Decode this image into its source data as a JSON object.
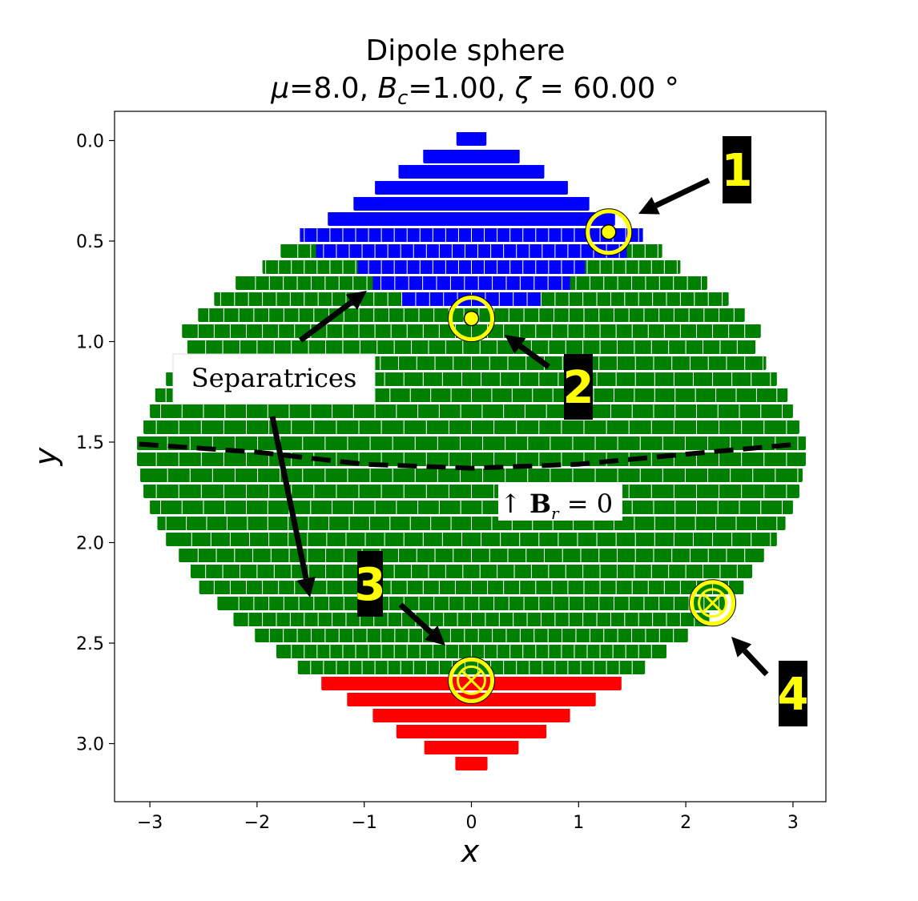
{
  "chart_data": {
    "type": "heatmap",
    "title": "Dipole sphere",
    "subtitle": {
      "mu_symbol": "μ",
      "mu_value": "=8.0, ",
      "bc_symbol": "B",
      "bc_sub": "c",
      "bc_value": "=1.00, ",
      "zeta_symbol": "ζ",
      "zeta_value": " = 60.00 °"
    },
    "xlabel": "x",
    "ylabel": "y",
    "xlim": [
      -3.3,
      3.3
    ],
    "ylim": [
      3.3,
      -0.15
    ],
    "y_inverted": true,
    "x_ticks": [
      "−3",
      "−2",
      "−1",
      "0",
      "1",
      "2",
      "3"
    ],
    "x_tick_values": [
      -3,
      -2,
      -1,
      0,
      1,
      2,
      3
    ],
    "y_ticks": [
      "0.0",
      "0.5",
      "1.0",
      "1.5",
      "2.0",
      "2.5",
      "3.0"
    ],
    "y_tick_values": [
      0,
      0.5,
      1,
      1.5,
      2,
      2.5,
      3
    ],
    "grid": false,
    "colors": {
      "region_top": "#0000ff",
      "region_middle": "#008000",
      "region_bottom": "#ff0000",
      "marker": "#ffff00"
    },
    "separatrix_curve": {
      "x": [
        -3.1,
        -2,
        -1,
        0,
        1,
        2,
        3.05
      ],
      "y": [
        1.51,
        1.55,
        1.61,
        1.63,
        1.61,
        1.56,
        1.51
      ]
    },
    "annotations": {
      "separatrices_label": "Separatrices",
      "br_zero_arrow": "↑ ",
      "br_zero_B": "B",
      "br_zero_sub": "r",
      "br_zero_eq": " = 0"
    },
    "markers": [
      {
        "label": "1",
        "kind": "dot",
        "x": 1.28,
        "y": 0.455
      },
      {
        "label": "2",
        "kind": "dot",
        "x": 0.0,
        "y": 0.885
      },
      {
        "label": "3",
        "kind": "cross",
        "x": 0.0,
        "y": 2.685
      },
      {
        "label": "4",
        "kind": "cross",
        "x": 2.25,
        "y": 2.3
      }
    ]
  }
}
